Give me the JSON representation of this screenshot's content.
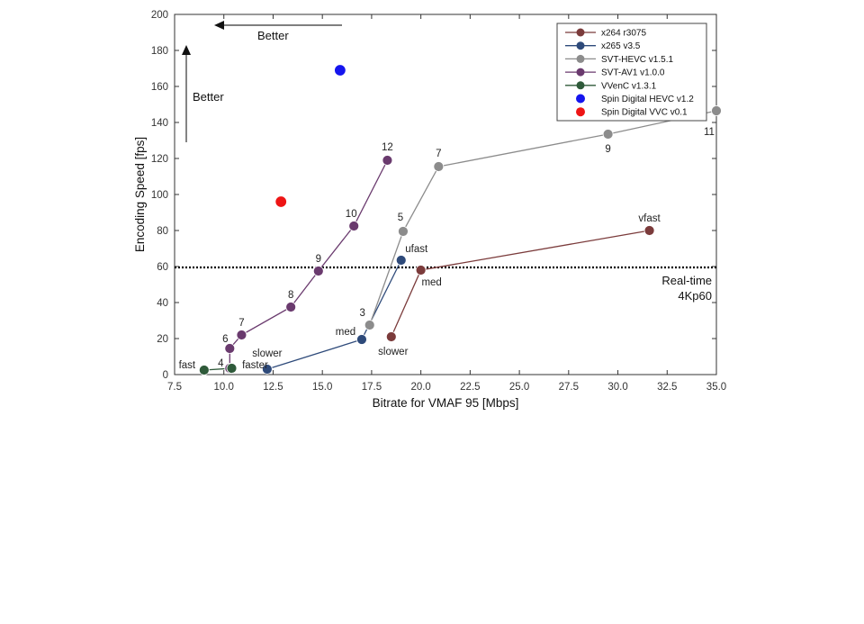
{
  "chart_data": {
    "type": "scatter",
    "xlabel": "Bitrate for VMAF 95 [Mbps]",
    "ylabel": "Encoding Speed [fps]",
    "xlim": [
      7.5,
      35.0
    ],
    "ylim": [
      0,
      200
    ],
    "xticks": [
      "7.5",
      "10.0",
      "12.5",
      "15.0",
      "17.5",
      "20.0",
      "22.5",
      "25.0",
      "27.5",
      "30.0",
      "32.5",
      "35.0"
    ],
    "yticks": [
      "0",
      "20",
      "40",
      "60",
      "80",
      "100",
      "120",
      "140",
      "160",
      "180",
      "200"
    ],
    "grid": false,
    "legend_position": "top-right",
    "series": [
      {
        "name": "x264 r3075",
        "color": "#7b3b3b",
        "line": true,
        "points": [
          {
            "x": 18.5,
            "y": 21,
            "label": "slower"
          },
          {
            "x": 20.0,
            "y": 58,
            "label": "med"
          },
          {
            "x": 31.6,
            "y": 80,
            "label": "vfast"
          }
        ]
      },
      {
        "name": "x265 v3.5",
        "color": "#2e4a7a",
        "line": true,
        "points": [
          {
            "x": 12.2,
            "y": 3,
            "label": "slower"
          },
          {
            "x": 17.0,
            "y": 19.5,
            "label": "med"
          },
          {
            "x": 19.0,
            "y": 63.5,
            "label": "ufast"
          }
        ]
      },
      {
        "name": "SVT-HEVC v1.5.1",
        "color": "#8c8c8c",
        "line": true,
        "points": [
          {
            "x": 17.4,
            "y": 27.5,
            "label": "3"
          },
          {
            "x": 19.1,
            "y": 79.5,
            "label": "5"
          },
          {
            "x": 20.9,
            "y": 115.5,
            "label": "7"
          },
          {
            "x": 29.5,
            "y": 133.5,
            "label": "9"
          },
          {
            "x": 35.0,
            "y": 146.5,
            "label": "11"
          }
        ]
      },
      {
        "name": "SVT-AV1 v1.0.0",
        "color": "#6a3a6e",
        "line": true,
        "points": [
          {
            "x": 10.3,
            "y": 3.5,
            "label": "4"
          },
          {
            "x": 10.3,
            "y": 14.5,
            "label": "6"
          },
          {
            "x": 10.9,
            "y": 22,
            "label": "7"
          },
          {
            "x": 13.4,
            "y": 37.5,
            "label": "8"
          },
          {
            "x": 14.8,
            "y": 57.5,
            "label": "9"
          },
          {
            "x": 16.6,
            "y": 82.5,
            "label": "10"
          },
          {
            "x": 18.3,
            "y": 119,
            "label": "12"
          }
        ]
      },
      {
        "name": "VVenC v1.3.1",
        "color": "#2f5a3a",
        "line": true,
        "points": [
          {
            "x": 9.0,
            "y": 2.5,
            "label": "fast"
          },
          {
            "x": 10.4,
            "y": 3.5,
            "label": "faster"
          }
        ]
      },
      {
        "name": "Spin Digital HEVC v1.2",
        "color": "#1515ee",
        "line": false,
        "points": [
          {
            "x": 15.9,
            "y": 169,
            "label": ""
          }
        ]
      },
      {
        "name": "Spin Digital VVC v0.1",
        "color": "#ee1515",
        "line": false,
        "points": [
          {
            "x": 12.9,
            "y": 96,
            "label": ""
          }
        ]
      }
    ],
    "reference_line": {
      "y": 59.5,
      "label_line1": "Real-time",
      "label_line2": "4Kp60",
      "style": "dotted"
    },
    "annotations": {
      "better_horizontal": "Better",
      "better_vertical": "Better"
    }
  }
}
